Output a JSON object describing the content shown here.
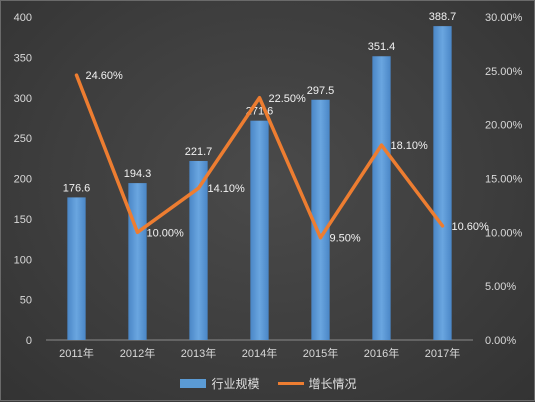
{
  "chart_data": {
    "type": "bar",
    "categories": [
      "2011年",
      "2012年",
      "2013年",
      "2014年",
      "2015年",
      "2016年",
      "2017年"
    ],
    "series": [
      {
        "name": "行业规模",
        "type": "bar",
        "axis": "left",
        "values": [
          176.6,
          194.3,
          221.7,
          271.6,
          297.5,
          351.4,
          388.7
        ],
        "labels": [
          "176.6",
          "194.3",
          "221.7",
          "271.6",
          "297.5",
          "351.4",
          "388.7"
        ],
        "color": "#5b9bd5"
      },
      {
        "name": "增长情况",
        "type": "line",
        "axis": "right",
        "values": [
          24.6,
          10.0,
          14.1,
          22.5,
          9.5,
          18.1,
          10.6
        ],
        "labels": [
          "24.60%",
          "10.00%",
          "14.10%",
          "22.50%",
          "9.50%",
          "18.10%",
          "10.60%"
        ],
        "color": "#ed7d31"
      }
    ],
    "y_left": {
      "ylim": [
        0,
        400
      ],
      "ticks": [
        "0",
        "50",
        "100",
        "150",
        "200",
        "250",
        "300",
        "350",
        "400"
      ]
    },
    "y_right": {
      "ylim": [
        0,
        30
      ],
      "ticks": [
        "0.00%",
        "5.00%",
        "10.00%",
        "15.00%",
        "20.00%",
        "25.00%",
        "30.00%"
      ]
    },
    "grid": false,
    "legend": "bottom",
    "background": "#3e3e3e"
  }
}
